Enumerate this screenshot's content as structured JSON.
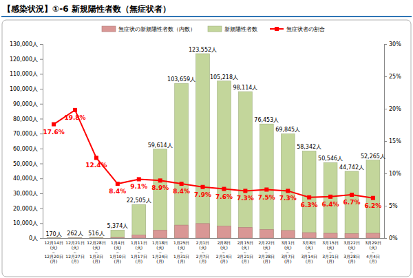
{
  "chart_data": {
    "type": "bar",
    "title": "【感染状況】①-6 新規陽性者数（無症状者）",
    "categories": [
      "12月14日(火)～12月20日(月)",
      "12月21日(火)～12月27日(月)",
      "12月28日(火)～1月3日(月)",
      "1月4日(火)～1月10日(月)",
      "1月11日(火)～1月17日(月)",
      "1月18日(火)～1月24日(月)",
      "1月25日(火)～1月31日(月)",
      "2月1日(火)～2月7日(月)",
      "2月8日(火)～2月14日(月)",
      "2月15日(火)～2月21日(月)",
      "2月22日(火)～2月28日(月)",
      "3月1日(火)～3月7日(月)",
      "3月8日(火)～3月14日(月)",
      "3月15日(火)～3月21日(月)",
      "3月22日(火)～3月28日(月)",
      "3月29日(火)～4月4日(月)"
    ],
    "series": [
      {
        "name": "無症状の新規陽性者数（内数）",
        "type": "bar",
        "color": "#d99795",
        "values": [
          30,
          52,
          64,
          451,
          2048,
          5306,
          8707,
          9761,
          7997,
          7162,
          5734,
          5099,
          3676,
          3235,
          2998,
          3240
        ]
      },
      {
        "name": "新規陽性者数",
        "type": "bar",
        "color": "#c3d69b",
        "data_labels": true,
        "values": [
          170,
          262,
          516,
          5374,
          22505,
          59614,
          103659,
          123552,
          105218,
          98114,
          76453,
          69845,
          58342,
          50546,
          44742,
          52265
        ],
        "value_labels": [
          "170人",
          "262人",
          "516人",
          "5,374人",
          "22,505人",
          "59,614人",
          "103,659人",
          "123,552人",
          "105,218人",
          "98,114人",
          "76,453人",
          "69,845人",
          "58,342人",
          "50,546人",
          "44,742人",
          "52,265人"
        ]
      },
      {
        "name": "無症状者の割合",
        "type": "line",
        "axis": "y2",
        "color": "#ff0000",
        "marker": "square",
        "data_labels": true,
        "values": [
          17.6,
          19.8,
          12.4,
          8.4,
          9.1,
          8.9,
          8.4,
          7.9,
          7.6,
          7.3,
          7.5,
          7.3,
          6.3,
          6.4,
          6.7,
          6.2
        ],
        "value_labels": [
          "17.6%",
          "19.8%",
          "12.4%",
          "8.4%",
          "9.1%",
          "8.9%",
          "8.4%",
          "7.9%",
          "7.6%",
          "7.3%",
          "7.5%",
          "7.3%",
          "6.3%",
          "6.4%",
          "6.7%",
          "6.2%"
        ]
      }
    ],
    "ylim": [
      0,
      130000
    ],
    "yticks": [
      {
        "value": 0,
        "label": "0人"
      },
      {
        "value": 10000,
        "label": "10,000人"
      },
      {
        "value": 20000,
        "label": "20,000人"
      },
      {
        "value": 30000,
        "label": "30,000人"
      },
      {
        "value": 40000,
        "label": "40,000人"
      },
      {
        "value": 50000,
        "label": "50,000人"
      },
      {
        "value": 60000,
        "label": "60,000人"
      },
      {
        "value": 70000,
        "label": "70,000人"
      },
      {
        "value": 80000,
        "label": "80,000人"
      },
      {
        "value": 90000,
        "label": "90,000人"
      },
      {
        "value": 100000,
        "label": "100,000人"
      },
      {
        "value": 110000,
        "label": "110,000人"
      },
      {
        "value": 120000,
        "label": "120,000人"
      },
      {
        "value": 130000,
        "label": "130,000人"
      }
    ],
    "y2lim": [
      0,
      30
    ],
    "y2ticks": [
      {
        "value": 0,
        "label": "0%"
      },
      {
        "value": 5,
        "label": "5%"
      },
      {
        "value": 10,
        "label": "10%"
      },
      {
        "value": 15,
        "label": "15%"
      },
      {
        "value": 20,
        "label": "20%"
      },
      {
        "value": 25,
        "label": "25%"
      },
      {
        "value": 30,
        "label": "30%"
      }
    ],
    "stacked": false,
    "grid": false,
    "legend": "top"
  }
}
